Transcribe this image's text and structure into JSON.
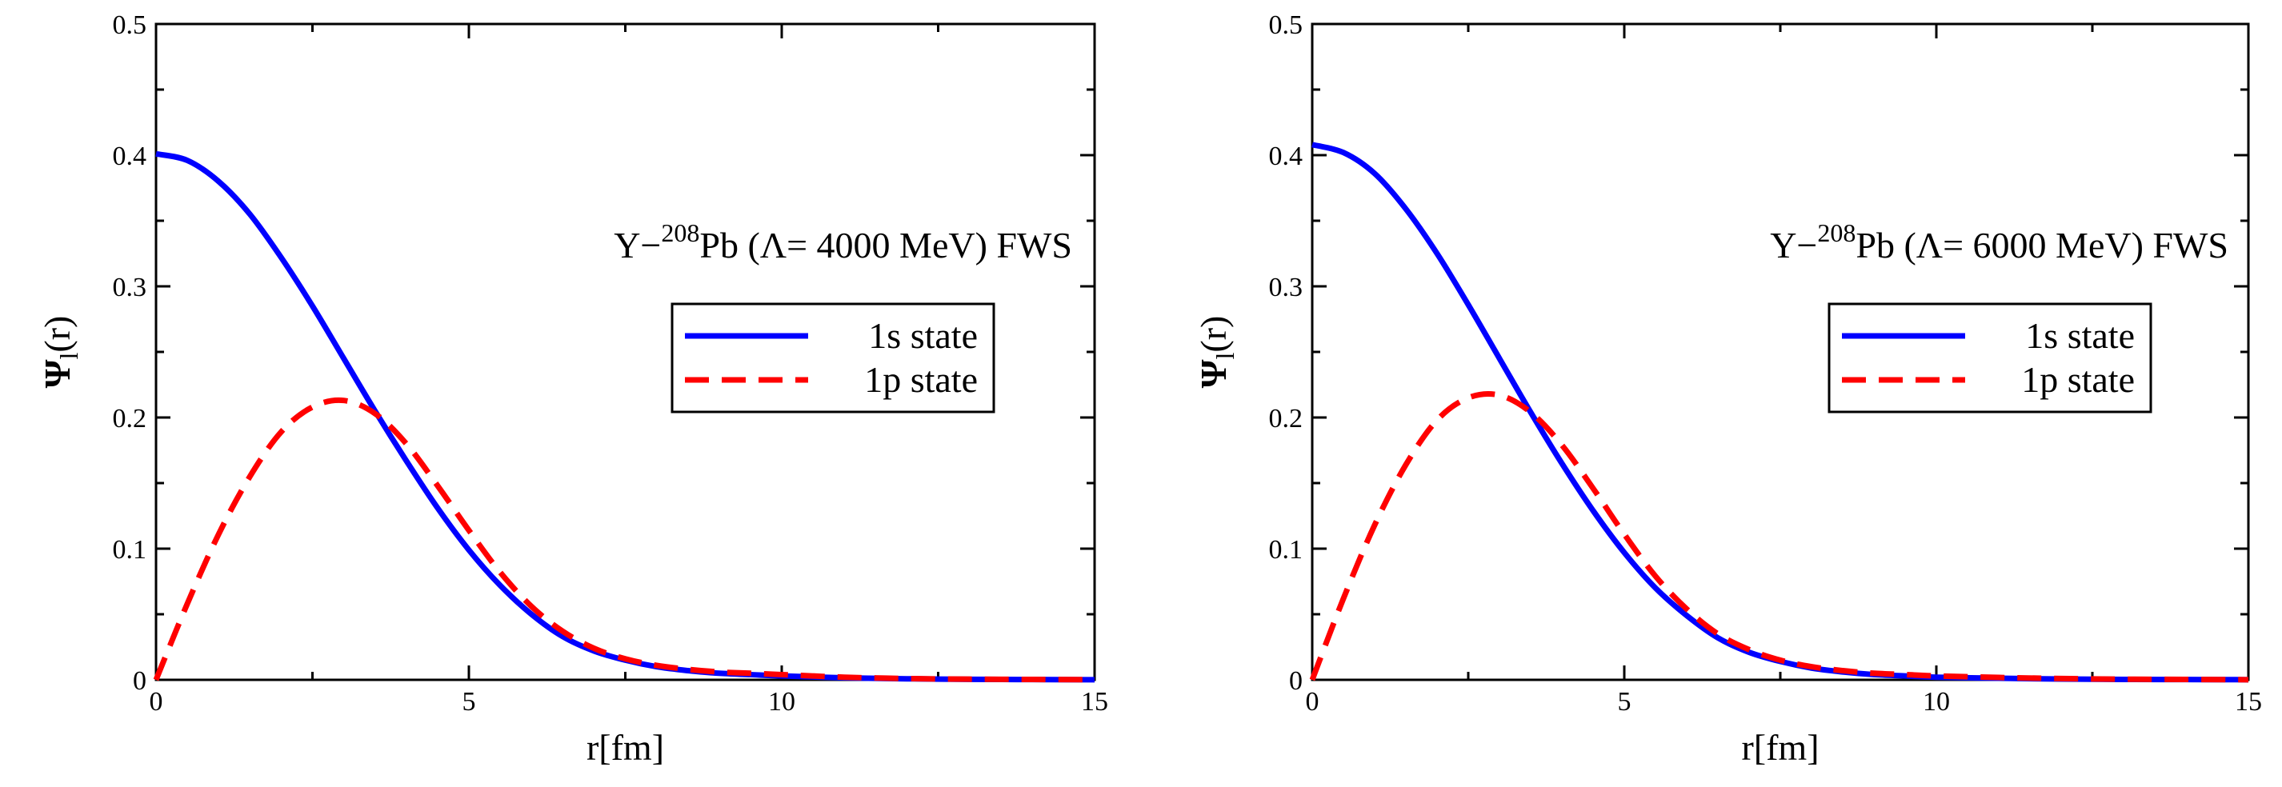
{
  "figure": {
    "description_panels": 2
  },
  "chart_data": [
    {
      "type": "line",
      "annotation": {
        "prefix": "Y−",
        "mass_number": "208",
        "suffix": "Pb (Λ= 4000 MeV) FWS"
      },
      "xlabel": "r[fm]",
      "ylabel": {
        "main": "Ψ",
        "sub": "l",
        "tail": "(r)"
      },
      "xlim": [
        0,
        15
      ],
      "ylim": [
        0,
        0.5
      ],
      "xticks": [
        0,
        5,
        10,
        15
      ],
      "xtick_labels": [
        "0",
        "5",
        "10",
        "15"
      ],
      "yticks": [
        0,
        0.1,
        0.2,
        0.3,
        0.4,
        0.5
      ],
      "ytick_labels": [
        "0",
        "0.1",
        "0.2",
        "0.3",
        "0.4",
        "0.5"
      ],
      "x": [
        0,
        0.5,
        1,
        1.5,
        2,
        2.5,
        3,
        3.5,
        4,
        4.5,
        5,
        5.5,
        6,
        6.5,
        7,
        7.5,
        8,
        8.5,
        9,
        9.5,
        10,
        11,
        12,
        13,
        14,
        15
      ],
      "series": [
        {
          "name": "1s state",
          "color": "#0000ff",
          "style": "solid",
          "values": [
            0.401,
            0.396,
            0.38,
            0.355,
            0.322,
            0.285,
            0.245,
            0.205,
            0.167,
            0.131,
            0.099,
            0.072,
            0.05,
            0.033,
            0.022,
            0.015,
            0.01,
            0.007,
            0.005,
            0.004,
            0.003,
            0.0015,
            0.0008,
            0.0004,
            0.0002,
            0.0001
          ]
        },
        {
          "name": "1p state",
          "color": "#ff0000",
          "style": "dashed",
          "values": [
            0.0,
            0.058,
            0.111,
            0.155,
            0.189,
            0.208,
            0.213,
            0.203,
            0.18,
            0.148,
            0.114,
            0.082,
            0.056,
            0.037,
            0.024,
            0.016,
            0.011,
            0.008,
            0.006,
            0.005,
            0.004,
            0.002,
            0.001,
            0.0005,
            0.0003,
            0.0001
          ]
        }
      ],
      "legend": {
        "position": "right-middle",
        "entries": [
          "1s state",
          "1p state"
        ]
      }
    },
    {
      "type": "line",
      "annotation": {
        "prefix": "Y−",
        "mass_number": "208",
        "suffix": "Pb (Λ= 6000 MeV) FWS"
      },
      "xlabel": "r[fm]",
      "ylabel": {
        "main": "Ψ",
        "sub": "l",
        "tail": "(r)"
      },
      "xlim": [
        0,
        15
      ],
      "ylim": [
        0,
        0.5
      ],
      "xticks": [
        0,
        5,
        10,
        15
      ],
      "xtick_labels": [
        "0",
        "5",
        "10",
        "15"
      ],
      "yticks": [
        0,
        0.1,
        0.2,
        0.3,
        0.4,
        0.5
      ],
      "ytick_labels": [
        "0",
        "0.1",
        "0.2",
        "0.3",
        "0.4",
        "0.5"
      ],
      "x": [
        0,
        0.5,
        1,
        1.5,
        2,
        2.5,
        3,
        3.5,
        4,
        4.5,
        5,
        5.5,
        6,
        6.5,
        7,
        7.5,
        8,
        8.5,
        9,
        9.5,
        10,
        11,
        12,
        13,
        14,
        15
      ],
      "series": [
        {
          "name": "1s state",
          "color": "#0000ff",
          "style": "solid",
          "values": [
            0.408,
            0.402,
            0.386,
            0.359,
            0.325,
            0.286,
            0.245,
            0.204,
            0.165,
            0.129,
            0.097,
            0.07,
            0.049,
            0.032,
            0.021,
            0.014,
            0.009,
            0.006,
            0.004,
            0.003,
            0.002,
            0.0012,
            0.0006,
            0.0003,
            0.0002,
            0.0001
          ]
        },
        {
          "name": "1p state",
          "color": "#ff0000",
          "style": "dashed",
          "values": [
            0.0,
            0.062,
            0.118,
            0.164,
            0.198,
            0.215,
            0.217,
            0.204,
            0.179,
            0.146,
            0.111,
            0.079,
            0.054,
            0.035,
            0.023,
            0.015,
            0.01,
            0.007,
            0.005,
            0.004,
            0.003,
            0.0018,
            0.001,
            0.0005,
            0.0003,
            0.0001
          ]
        }
      ],
      "legend": {
        "position": "right-middle",
        "entries": [
          "1s state",
          "1p state"
        ]
      }
    }
  ]
}
